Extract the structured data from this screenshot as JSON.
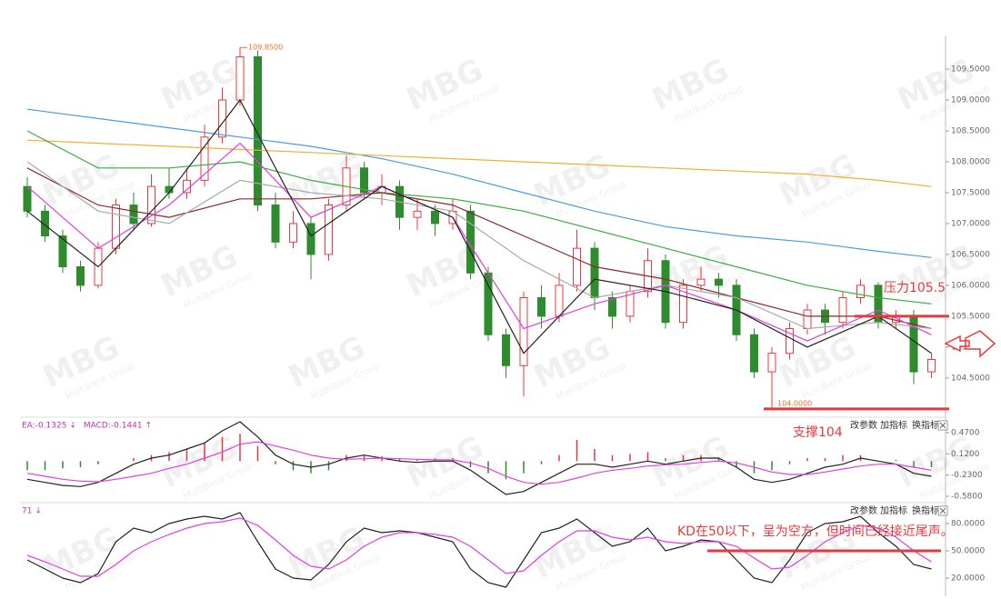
{
  "watermark": {
    "logo": "MBG",
    "text": "MultiBank Group"
  },
  "chart_data": [
    {
      "type": "candlestick",
      "categories": [
        null,
        null,
        null,
        null,
        null,
        null,
        null,
        null,
        null,
        null,
        null,
        null,
        null,
        null,
        null,
        null,
        null,
        null,
        null,
        null,
        null,
        null,
        null,
        null,
        null,
        null,
        null,
        null,
        null,
        null,
        null,
        null,
        null,
        null,
        null,
        null,
        null,
        null,
        null,
        null,
        null,
        null,
        null,
        null,
        null,
        null,
        null,
        null,
        null,
        null,
        null,
        null
      ],
      "ohlc": [
        [
          107.6,
          107.75,
          107.1,
          107.2
        ],
        [
          107.2,
          107.3,
          106.7,
          106.8
        ],
        [
          106.8,
          106.9,
          106.2,
          106.3
        ],
        [
          106.3,
          106.4,
          105.9,
          106.0
        ],
        [
          106.0,
          106.7,
          105.95,
          106.6
        ],
        [
          106.6,
          107.4,
          106.5,
          107.3
        ],
        [
          107.3,
          107.5,
          106.9,
          107.0
        ],
        [
          107.0,
          107.8,
          106.95,
          107.6
        ],
        [
          107.6,
          107.9,
          107.4,
          107.5
        ],
        [
          107.5,
          107.9,
          107.4,
          107.7
        ],
        [
          107.7,
          108.6,
          107.6,
          108.4
        ],
        [
          108.4,
          109.2,
          108.3,
          109.0
        ],
        [
          109.0,
          109.85,
          108.9,
          109.7
        ],
        [
          109.7,
          109.8,
          107.2,
          107.3
        ],
        [
          107.3,
          107.5,
          106.6,
          106.7
        ],
        [
          106.7,
          107.2,
          106.6,
          107.0
        ],
        [
          107.0,
          107.1,
          106.1,
          106.5
        ],
        [
          106.5,
          107.4,
          106.4,
          107.3
        ],
        [
          107.3,
          108.1,
          107.2,
          107.9
        ],
        [
          107.9,
          108.0,
          107.4,
          107.5
        ],
        [
          107.5,
          107.8,
          107.3,
          107.6
        ],
        [
          107.6,
          107.7,
          106.9,
          107.1
        ],
        [
          107.1,
          107.4,
          106.9,
          107.2
        ],
        [
          107.2,
          107.3,
          106.8,
          107.0
        ],
        [
          107.0,
          107.4,
          106.9,
          107.2
        ],
        [
          107.2,
          107.3,
          106.1,
          106.2
        ],
        [
          106.2,
          106.3,
          105.1,
          105.2
        ],
        [
          105.2,
          105.3,
          104.5,
          104.7
        ],
        [
          104.7,
          105.9,
          104.2,
          105.8
        ],
        [
          105.8,
          106.0,
          105.3,
          105.5
        ],
        [
          105.5,
          106.2,
          105.4,
          106.0
        ],
        [
          106.0,
          106.9,
          105.9,
          106.6
        ],
        [
          106.6,
          106.7,
          105.6,
          105.8
        ],
        [
          105.8,
          105.9,
          105.3,
          105.5
        ],
        [
          105.5,
          106.0,
          105.4,
          105.9
        ],
        [
          105.9,
          106.6,
          105.8,
          106.4
        ],
        [
          106.4,
          106.5,
          105.3,
          105.4
        ],
        [
          105.4,
          106.1,
          105.3,
          106.0
        ],
        [
          106.0,
          106.3,
          105.9,
          106.1
        ],
        [
          106.1,
          106.2,
          105.8,
          106.0
        ],
        [
          106.0,
          106.1,
          105.1,
          105.2
        ],
        [
          105.2,
          105.3,
          104.5,
          104.6
        ],
        [
          104.6,
          105.0,
          104.0,
          104.9
        ],
        [
          104.9,
          105.4,
          104.8,
          105.3
        ],
        [
          105.3,
          105.7,
          105.2,
          105.6
        ],
        [
          105.6,
          105.7,
          105.2,
          105.4
        ],
        [
          105.4,
          105.9,
          105.3,
          105.8
        ],
        [
          105.8,
          106.1,
          105.7,
          106.0
        ],
        [
          106.0,
          106.05,
          105.3,
          105.4
        ],
        [
          105.4,
          105.6,
          105.3,
          105.5
        ],
        [
          105.5,
          105.6,
          104.4,
          104.6
        ],
        [
          104.6,
          104.9,
          104.5,
          104.8
        ]
      ],
      "up_color": "#e8383d",
      "down_color": "#2e8b2e",
      "series": [
        {
          "color": "#4a9ee0",
          "x": [
            0,
            4,
            8,
            12,
            16,
            20,
            24,
            28,
            32,
            36,
            40,
            44,
            48,
            51
          ],
          "values": [
            108.85,
            108.7,
            108.55,
            108.4,
            108.25,
            108.05,
            107.8,
            107.5,
            107.2,
            106.95,
            106.8,
            106.7,
            106.55,
            106.45
          ]
        },
        {
          "color": "#f0b030",
          "x": [
            0,
            4,
            8,
            12,
            16,
            20,
            24,
            28,
            32,
            36,
            40,
            44,
            48,
            51
          ],
          "values": [
            108.35,
            108.3,
            108.25,
            108.2,
            108.15,
            108.1,
            108.05,
            108.0,
            107.95,
            107.9,
            107.85,
            107.8,
            107.7,
            107.6
          ]
        },
        {
          "color": "#3cae3c",
          "x": [
            0,
            4,
            8,
            12,
            16,
            20,
            24,
            28,
            32,
            36,
            40,
            44,
            48,
            51
          ],
          "values": [
            108.5,
            107.9,
            107.9,
            108.0,
            107.7,
            107.5,
            107.4,
            107.2,
            106.9,
            106.6,
            106.3,
            106.0,
            105.8,
            105.7
          ]
        },
        {
          "color": "#8b2c2c",
          "x": [
            0,
            4,
            8,
            12,
            16,
            20,
            24,
            28,
            32,
            36,
            40,
            44,
            48,
            51
          ],
          "values": [
            107.9,
            107.3,
            107.1,
            107.4,
            107.4,
            107.5,
            107.3,
            106.8,
            106.3,
            106.1,
            105.8,
            105.5,
            105.5,
            105.3
          ]
        },
        {
          "color": "#aaaaaa",
          "x": [
            0,
            4,
            8,
            12,
            16,
            20,
            24,
            28,
            32,
            36,
            40,
            44,
            48,
            51
          ],
          "values": [
            108.0,
            107.2,
            107.0,
            107.7,
            107.5,
            107.4,
            107.2,
            106.4,
            105.8,
            106.0,
            105.8,
            105.3,
            105.4,
            105.3
          ]
        },
        {
          "color": "#e040e0",
          "x": [
            0,
            4,
            8,
            12,
            16,
            20,
            24,
            28,
            32,
            36,
            40,
            44,
            48,
            51
          ],
          "values": [
            107.6,
            106.6,
            107.3,
            108.3,
            107.1,
            107.6,
            107.1,
            105.3,
            105.7,
            106.0,
            105.6,
            105.1,
            105.6,
            105.2
          ]
        },
        {
          "color": "#222222",
          "x": [
            0,
            4,
            8,
            12,
            16,
            20,
            24,
            28,
            32,
            36,
            40,
            44,
            48,
            51
          ],
          "values": [
            107.2,
            106.3,
            107.5,
            109.0,
            106.8,
            107.6,
            107.1,
            104.9,
            106.1,
            105.9,
            105.6,
            105.0,
            105.5,
            104.9
          ]
        }
      ],
      "high_label": "109.8500",
      "low_label": "104.0000",
      "levels": [
        {
          "label": "压力105.5",
          "value": 105.5,
          "color": "#e8383d"
        },
        {
          "label": "支撑104",
          "value": 104,
          "color": "#e8383d"
        }
      ],
      "ylim": [
        103.88,
        110.03
      ],
      "yticks": [
        {
          "value": 104.5,
          "label": "104.5000"
        },
        {
          "value": 105,
          "label": "105.0000"
        },
        {
          "value": 105.5,
          "label": "105.5000"
        },
        {
          "value": 106,
          "label": "106.0000"
        },
        {
          "value": 106.5,
          "label": "106.5000"
        },
        {
          "value": 107,
          "label": "107.0000"
        },
        {
          "value": 107.5,
          "label": "107.5000"
        },
        {
          "value": 108,
          "label": "108.0000"
        },
        {
          "value": 108.5,
          "label": "108.5000"
        },
        {
          "value": 109,
          "label": "109.0000"
        },
        {
          "value": 109.5,
          "label": "109.5000"
        }
      ]
    },
    {
      "type": "macd",
      "legend": [
        "EA:-0.1325 ↓",
        "MACD:-0.1441 ↑"
      ],
      "buttons": [
        "改参数",
        "加指标",
        "换指标"
      ],
      "histogram": {
        "up_color": "#e8383d",
        "down_color": "#2e8b2e",
        "values": [
          -0.15,
          -0.15,
          -0.12,
          -0.1,
          -0.05,
          0.0,
          0.05,
          0.1,
          0.15,
          0.2,
          0.3,
          0.4,
          0.45,
          0.25,
          -0.05,
          -0.15,
          -0.2,
          -0.15,
          0.1,
          0.1,
          0.08,
          0.05,
          0.03,
          0.05,
          0.05,
          -0.1,
          -0.2,
          -0.3,
          -0.2,
          -0.05,
          0.1,
          0.35,
          0.2,
          0.1,
          0.12,
          0.15,
          0.05,
          0.1,
          0.1,
          0.05,
          -0.1,
          -0.2,
          -0.15,
          -0.05,
          0.05,
          0.05,
          0.1,
          0.1,
          0.0,
          0.02,
          -0.1,
          -0.1
        ]
      },
      "series": [
        {
          "color": "#222222",
          "values": [
            -0.3,
            -0.35,
            -0.4,
            -0.42,
            -0.35,
            -0.2,
            -0.05,
            0.05,
            0.1,
            0.2,
            0.3,
            0.5,
            0.65,
            0.4,
            0.1,
            -0.05,
            -0.1,
            -0.05,
            0.05,
            0.1,
            0.05,
            0.0,
            -0.02,
            0.0,
            0.0,
            -0.15,
            -0.35,
            -0.55,
            -0.5,
            -0.35,
            -0.2,
            -0.05,
            -0.05,
            -0.1,
            -0.05,
            0.0,
            -0.05,
            0.0,
            0.05,
            0.05,
            -0.1,
            -0.3,
            -0.35,
            -0.3,
            -0.2,
            -0.1,
            -0.05,
            0.05,
            0.0,
            -0.05,
            -0.2,
            -0.25
          ]
        },
        {
          "color": "#e040e0",
          "values": [
            -0.2,
            -0.25,
            -0.3,
            -0.33,
            -0.34,
            -0.3,
            -0.25,
            -0.2,
            -0.12,
            -0.05,
            0.05,
            0.15,
            0.28,
            0.32,
            0.25,
            0.18,
            0.1,
            0.05,
            0.03,
            0.04,
            0.05,
            0.04,
            0.03,
            0.02,
            0.02,
            -0.03,
            -0.12,
            -0.25,
            -0.35,
            -0.38,
            -0.35,
            -0.28,
            -0.2,
            -0.15,
            -0.12,
            -0.08,
            -0.06,
            -0.05,
            -0.02,
            0.0,
            -0.03,
            -0.1,
            -0.18,
            -0.22,
            -0.22,
            -0.18,
            -0.13,
            -0.08,
            -0.05,
            -0.05,
            -0.1,
            -0.15
          ]
        }
      ],
      "ylim": [
        -0.67,
        0.68
      ],
      "yticks": [
        {
          "value": -0.58,
          "label": "-0.5800"
        },
        {
          "value": -0.23,
          "label": "-0.2300"
        },
        {
          "value": 0.12,
          "label": "0.1200"
        },
        {
          "value": 0.47,
          "label": "0.4700"
        }
      ]
    },
    {
      "type": "line",
      "legend": [
        "71 ↓"
      ],
      "buttons": [
        "改参数",
        "加指标",
        "换指标"
      ],
      "annotation": "KD在50以下，呈为空方，但时间已经接近尾声。",
      "level": {
        "value": 50,
        "color": "#e8383d"
      },
      "series": [
        {
          "color": "#222222",
          "values": [
            40,
            30,
            20,
            15,
            25,
            60,
            75,
            70,
            80,
            85,
            88,
            85,
            92,
            60,
            30,
            20,
            18,
            35,
            60,
            75,
            70,
            72,
            70,
            65,
            60,
            30,
            15,
            10,
            40,
            70,
            75,
            85,
            70,
            55,
            60,
            75,
            50,
            55,
            62,
            60,
            40,
            20,
            15,
            40,
            70,
            80,
            82,
            88,
            70,
            55,
            35,
            30
          ]
        },
        {
          "color": "#e040e0",
          "values": [
            45,
            38,
            30,
            22,
            22,
            35,
            50,
            60,
            68,
            75,
            80,
            82,
            86,
            78,
            62,
            45,
            33,
            30,
            40,
            55,
            65,
            70,
            70,
            68,
            65,
            55,
            40,
            25,
            28,
            45,
            60,
            72,
            72,
            65,
            62,
            65,
            60,
            58,
            60,
            60,
            55,
            42,
            30,
            32,
            45,
            60,
            70,
            78,
            75,
            65,
            50,
            38
          ]
        }
      ],
      "ylim": [
        0,
        100
      ],
      "yticks": [
        {
          "value": 20,
          "label": "20.0000"
        },
        {
          "value": 50,
          "label": "50.0000"
        },
        {
          "value": 80,
          "label": "80.0000"
        }
      ]
    }
  ]
}
